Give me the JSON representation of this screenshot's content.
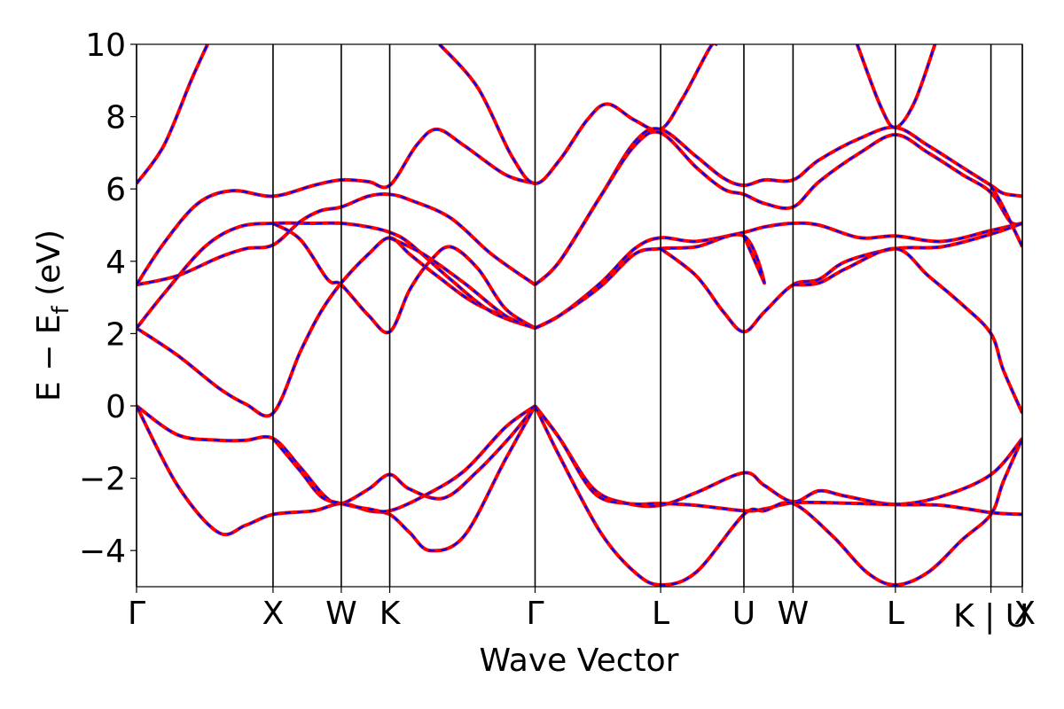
{
  "chart_data": {
    "type": "line",
    "title": "",
    "xlabel": "Wave Vector",
    "ylabel_main": "E − E",
    "ylabel_sub": "f",
    "ylabel_unit": " (eV)",
    "ylim": [
      -5,
      10
    ],
    "yticks": [
      10,
      8,
      6,
      4,
      2,
      0,
      -2,
      -4
    ],
    "ytick_labels": [
      "10",
      "8",
      "6",
      "4",
      "2",
      "0",
      "−2",
      "−4"
    ],
    "grid": false,
    "legend": "none",
    "kpoint_positions": [
      0,
      1.0,
      1.5,
      1.855,
      2.92,
      3.84,
      4.45,
      4.81,
      5.56,
      6.26,
      6.49
    ],
    "kpoint_labels": [
      {
        "label": "Γ",
        "x": 0
      },
      {
        "label": "X",
        "x": 1.0
      },
      {
        "label": "W",
        "x": 1.5
      },
      {
        "label": "K",
        "x": 1.855
      },
      {
        "label": "Γ",
        "x": 2.92
      },
      {
        "label": "L",
        "x": 3.84
      },
      {
        "label": "U",
        "x": 4.45
      },
      {
        "label": "W",
        "x": 4.81
      },
      {
        "label": "L",
        "x": 5.56
      },
      {
        "label": "K | U",
        "x": 6.26
      },
      {
        "label": "X",
        "x": 6.49
      }
    ],
    "xlim": [
      0,
      6.49
    ],
    "series_colors": {
      "solid": "#ff0000",
      "dashed": "#0000ff"
    },
    "bands": [
      {
        "points": [
          [
            0,
            0
          ],
          [
            0.3,
            -0.8
          ],
          [
            0.6,
            -0.95
          ],
          [
            0.8,
            -0.95
          ],
          [
            1.0,
            -0.9
          ],
          [
            1.2,
            -1.7
          ],
          [
            1.38,
            -2.5
          ],
          [
            1.5,
            -2.7
          ],
          [
            1.7,
            -2.3
          ],
          [
            1.855,
            -1.9
          ],
          [
            2.0,
            -2.3
          ],
          [
            2.25,
            -2.55
          ],
          [
            2.5,
            -1.8
          ],
          [
            2.75,
            -0.8
          ],
          [
            2.92,
            0
          ]
        ]
      },
      {
        "points": [
          [
            0,
            0
          ],
          [
            0.3,
            -2.2
          ],
          [
            0.6,
            -3.5
          ],
          [
            0.8,
            -3.3
          ],
          [
            1.0,
            -3.0
          ],
          [
            1.3,
            -2.9
          ],
          [
            1.5,
            -2.7
          ],
          [
            1.7,
            -2.9
          ],
          [
            1.855,
            -3.0
          ],
          [
            2.0,
            -3.5
          ],
          [
            2.15,
            -4.0
          ],
          [
            2.4,
            -3.6
          ],
          [
            2.7,
            -1.5
          ],
          [
            2.92,
            0
          ]
        ]
      },
      {
        "points": [
          [
            1.0,
            -0.9
          ],
          [
            1.2,
            -1.8
          ],
          [
            1.35,
            -2.5
          ],
          [
            1.5,
            -2.7
          ],
          [
            1.7,
            -2.85
          ],
          [
            1.855,
            -2.9
          ],
          [
            2.1,
            -2.5
          ],
          [
            2.4,
            -1.8
          ],
          [
            2.7,
            -0.6
          ],
          [
            2.92,
            0
          ]
        ]
      },
      {
        "points": [
          [
            2.92,
            0
          ],
          [
            3.1,
            -0.9
          ],
          [
            3.35,
            -2.3
          ],
          [
            3.6,
            -2.7
          ],
          [
            3.84,
            -2.75
          ],
          [
            4.1,
            -2.4
          ],
          [
            4.45,
            -1.85
          ],
          [
            4.6,
            -2.2
          ],
          [
            4.81,
            -2.65
          ],
          [
            5.0,
            -2.35
          ],
          [
            5.2,
            -2.5
          ],
          [
            5.56,
            -2.72
          ],
          [
            5.9,
            -2.5
          ],
          [
            6.26,
            -1.9
          ],
          [
            6.49,
            -0.9
          ]
        ]
      },
      {
        "points": [
          [
            2.92,
            0
          ],
          [
            3.1,
            -0.9
          ],
          [
            3.35,
            -2.4
          ],
          [
            3.6,
            -2.7
          ],
          [
            3.84,
            -2.7
          ],
          [
            4.1,
            -2.75
          ],
          [
            4.45,
            -2.9
          ],
          [
            4.6,
            -2.85
          ],
          [
            4.81,
            -2.68
          ],
          [
            5.1,
            -2.68
          ],
          [
            5.56,
            -2.73
          ],
          [
            5.9,
            -2.75
          ],
          [
            6.26,
            -2.95
          ],
          [
            6.49,
            -3.0
          ]
        ]
      },
      {
        "points": [
          [
            2.92,
            0
          ],
          [
            3.1,
            -1.4
          ],
          [
            3.4,
            -3.5
          ],
          [
            3.65,
            -4.6
          ],
          [
            3.84,
            -4.95
          ],
          [
            4.1,
            -4.6
          ],
          [
            4.45,
            -3.0
          ],
          [
            4.6,
            -2.9
          ],
          [
            4.81,
            -2.7
          ],
          [
            5.1,
            -3.6
          ],
          [
            5.35,
            -4.6
          ],
          [
            5.56,
            -4.95
          ],
          [
            5.8,
            -4.6
          ],
          [
            6.05,
            -3.7
          ],
          [
            6.26,
            -3.0
          ],
          [
            6.35,
            -2.1
          ],
          [
            6.49,
            -0.9
          ]
        ]
      },
      {
        "points": [
          [
            0,
            2.15
          ],
          [
            0.3,
            1.4
          ],
          [
            0.6,
            0.5
          ],
          [
            0.8,
            0.05
          ],
          [
            1.0,
            -0.2
          ],
          [
            1.2,
            1.5
          ],
          [
            1.35,
            2.6
          ],
          [
            1.5,
            3.4
          ],
          [
            1.7,
            4.2
          ],
          [
            1.855,
            4.65
          ],
          [
            2.0,
            4.2
          ],
          [
            2.2,
            3.6
          ],
          [
            2.5,
            2.8
          ],
          [
            2.92,
            2.15
          ]
        ]
      },
      {
        "points": [
          [
            0,
            2.15
          ],
          [
            0.2,
            3.1
          ],
          [
            0.5,
            4.4
          ],
          [
            0.75,
            4.95
          ],
          [
            1.0,
            5.05
          ],
          [
            1.3,
            5.05
          ],
          [
            1.5,
            5.05
          ],
          [
            1.7,
            4.95
          ],
          [
            1.855,
            4.8
          ],
          [
            2.0,
            4.5
          ],
          [
            2.3,
            3.5
          ],
          [
            2.6,
            2.6
          ],
          [
            2.92,
            2.15
          ]
        ]
      },
      {
        "points": [
          [
            0,
            3.35
          ],
          [
            0.3,
            3.6
          ],
          [
            0.6,
            4.1
          ],
          [
            0.8,
            4.35
          ],
          [
            1.0,
            4.45
          ],
          [
            1.2,
            5.1
          ],
          [
            1.35,
            5.4
          ],
          [
            1.5,
            5.5
          ],
          [
            1.7,
            5.8
          ],
          [
            1.855,
            5.85
          ],
          [
            2.0,
            5.7
          ],
          [
            2.3,
            5.2
          ],
          [
            2.6,
            4.2
          ],
          [
            2.92,
            3.35
          ]
        ]
      },
      {
        "points": [
          [
            0,
            3.35
          ],
          [
            0.2,
            4.5
          ],
          [
            0.45,
            5.6
          ],
          [
            0.7,
            5.95
          ],
          [
            1.0,
            5.8
          ],
          [
            1.3,
            6.1
          ],
          [
            1.5,
            6.25
          ],
          [
            1.7,
            6.2
          ],
          [
            1.855,
            6.1
          ],
          [
            2.05,
            7.2
          ],
          [
            2.2,
            7.65
          ],
          [
            2.4,
            7.2
          ],
          [
            2.7,
            6.4
          ],
          [
            2.92,
            6.15
          ]
        ]
      },
      {
        "points": [
          [
            1.0,
            5.05
          ],
          [
            1.2,
            4.6
          ],
          [
            1.4,
            3.5
          ],
          [
            1.5,
            3.35
          ],
          [
            1.7,
            2.5
          ],
          [
            1.855,
            2.05
          ],
          [
            2.0,
            3.2
          ],
          [
            2.15,
            4.0
          ],
          [
            2.3,
            4.4
          ],
          [
            2.5,
            3.8
          ],
          [
            2.7,
            2.7
          ],
          [
            2.92,
            2.15
          ]
        ]
      },
      {
        "points": [
          [
            1.855,
            4.65
          ],
          [
            2.1,
            4.2
          ],
          [
            2.4,
            3.4
          ],
          [
            2.7,
            2.5
          ],
          [
            2.92,
            2.15
          ]
        ]
      },
      {
        "points": [
          [
            0,
            6.15
          ],
          [
            0.2,
            7.2
          ],
          [
            0.4,
            9.0
          ],
          [
            0.52,
            10.0
          ]
        ]
      },
      {
        "points": [
          [
            2.22,
            10
          ],
          [
            2.5,
            8.8
          ],
          [
            2.75,
            6.9
          ],
          [
            2.92,
            6.15
          ],
          [
            3.1,
            6.8
          ],
          [
            3.3,
            7.9
          ],
          [
            3.45,
            8.35
          ],
          [
            3.65,
            7.9
          ],
          [
            3.84,
            7.65
          ],
          [
            4.0,
            8.5
          ],
          [
            4.2,
            9.9
          ],
          [
            4.25,
            10
          ]
        ]
      },
      {
        "points": [
          [
            2.92,
            3.35
          ],
          [
            3.1,
            4.0
          ],
          [
            3.4,
            5.8
          ],
          [
            3.65,
            7.3
          ],
          [
            3.84,
            7.65
          ],
          [
            4.1,
            6.9
          ],
          [
            4.3,
            6.3
          ],
          [
            4.45,
            6.1
          ],
          [
            4.6,
            6.25
          ],
          [
            4.81,
            6.25
          ],
          [
            5.0,
            6.8
          ],
          [
            5.3,
            7.4
          ],
          [
            5.56,
            7.7
          ],
          [
            5.8,
            7.2
          ],
          [
            6.05,
            6.6
          ],
          [
            6.26,
            6.1
          ],
          [
            6.35,
            5.88
          ],
          [
            6.49,
            5.8
          ]
        ]
      },
      {
        "points": [
          [
            2.92,
            3.35
          ],
          [
            3.1,
            4.0
          ],
          [
            3.4,
            5.8
          ],
          [
            3.65,
            7.2
          ],
          [
            3.84,
            7.55
          ],
          [
            4.1,
            6.6
          ],
          [
            4.3,
            6.0
          ],
          [
            4.45,
            5.85
          ],
          [
            4.6,
            5.6
          ],
          [
            4.81,
            5.5
          ],
          [
            5.0,
            6.2
          ],
          [
            5.3,
            7.0
          ],
          [
            5.56,
            7.5
          ],
          [
            5.8,
            7.0
          ],
          [
            6.05,
            6.4
          ],
          [
            6.26,
            5.9
          ],
          [
            6.4,
            5.1
          ],
          [
            6.49,
            5.05
          ]
        ]
      },
      {
        "points": [
          [
            2.92,
            2.15
          ],
          [
            3.1,
            2.5
          ],
          [
            3.4,
            3.4
          ],
          [
            3.65,
            4.35
          ],
          [
            3.84,
            4.65
          ],
          [
            4.1,
            4.55
          ],
          [
            4.45,
            4.8
          ],
          [
            4.6,
            4.95
          ],
          [
            4.81,
            5.05
          ],
          [
            5.0,
            5.0
          ],
          [
            5.3,
            4.65
          ],
          [
            5.56,
            4.7
          ],
          [
            5.9,
            4.55
          ],
          [
            6.26,
            4.85
          ],
          [
            6.49,
            5.05
          ]
        ]
      },
      {
        "points": [
          [
            2.92,
            2.15
          ],
          [
            3.1,
            2.5
          ],
          [
            3.4,
            3.3
          ],
          [
            3.65,
            4.2
          ],
          [
            3.84,
            4.35
          ],
          [
            4.1,
            4.4
          ],
          [
            4.45,
            4.7
          ],
          [
            4.6,
            3.4
          ],
          [
            4.45,
            4.7
          ]
        ]
      },
      {
        "points": [
          [
            3.84,
            4.35
          ],
          [
            4.1,
            3.6
          ],
          [
            4.3,
            2.6
          ],
          [
            4.45,
            2.05
          ],
          [
            4.6,
            2.6
          ],
          [
            4.81,
            3.35
          ],
          [
            5.0,
            3.5
          ],
          [
            5.2,
            4.0
          ],
          [
            5.56,
            4.35
          ],
          [
            5.9,
            4.4
          ],
          [
            6.26,
            4.75
          ],
          [
            6.49,
            5.05
          ]
        ]
      },
      {
        "points": [
          [
            4.81,
            3.35
          ],
          [
            5.0,
            3.4
          ],
          [
            5.2,
            3.8
          ],
          [
            5.56,
            4.35
          ],
          [
            5.8,
            3.6
          ],
          [
            6.05,
            2.8
          ],
          [
            6.26,
            2.0
          ],
          [
            6.35,
            1.0
          ],
          [
            6.49,
            -0.2
          ]
        ]
      },
      {
        "points": [
          [
            5.28,
            10
          ],
          [
            5.45,
            8.3
          ],
          [
            5.56,
            7.7
          ],
          [
            5.7,
            8.4
          ],
          [
            5.85,
            10
          ]
        ]
      },
      {
        "points": [
          [
            6.26,
            6.1
          ],
          [
            6.35,
            5.5
          ],
          [
            6.49,
            4.4
          ]
        ]
      }
    ]
  }
}
